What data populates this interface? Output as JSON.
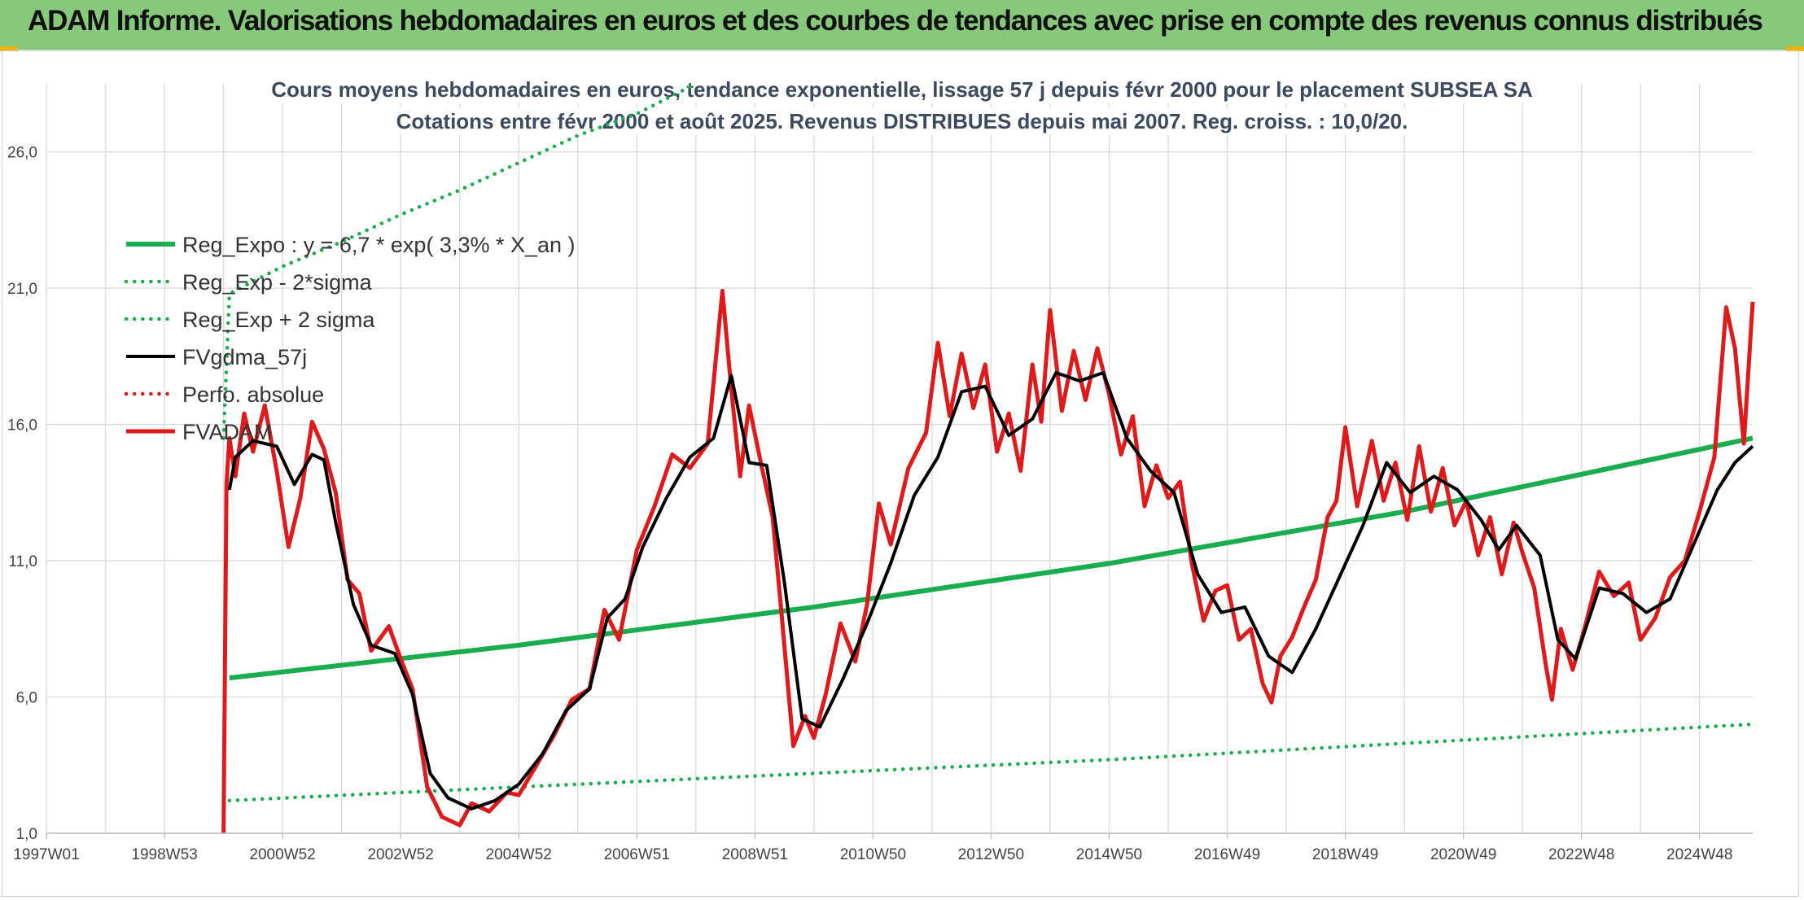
{
  "header": {
    "banner_title": "ADAM Informe. Valorisations hebdomadaires en euros et des courbes de tendances avec prise en compte des revenus connus distribués"
  },
  "colors": {
    "banner_bg": "#86c97a",
    "trend": "#1aad50",
    "band": "#1aad50",
    "smooth": "#000000",
    "price": "#e0191b",
    "perfo": "#e0191b",
    "title_text": "#3b4a5e"
  },
  "chart_data": {
    "type": "line",
    "title_lines": [
      "Cours moyens hebdomadaires en euros, tendance exponentielle, lissage 57 j depuis févr 2000 pour le placement SUBSEA SA",
      "Cotations entre févr 2000 et août 2025. Revenus DISTRIBUES depuis mai 2007. Reg. croiss. : 10,0/20."
    ],
    "xlabel": "",
    "ylabel": "",
    "x_unit": "year",
    "xlim": [
      1997.0,
      2025.9
    ],
    "ylim": [
      1.0,
      28.5
    ],
    "y_ticks": [
      1.0,
      6.0,
      11.0,
      16.0,
      21.0,
      26.0
    ],
    "y_tick_labels": [
      "1,0",
      "6,0",
      "11,0",
      "16,0",
      "21,0",
      "26,0"
    ],
    "x_ticks": [
      {
        "label": "1997W01",
        "x": 1997.0
      },
      {
        "label": "1998W53",
        "x": 1999.0
      },
      {
        "label": "2000W52",
        "x": 2001.0
      },
      {
        "label": "2002W52",
        "x": 2003.0
      },
      {
        "label": "2004W52",
        "x": 2005.0
      },
      {
        "label": "2006W51",
        "x": 2007.0
      },
      {
        "label": "2008W51",
        "x": 2009.0
      },
      {
        "label": "2010W50",
        "x": 2011.0
      },
      {
        "label": "2012W50",
        "x": 2013.0
      },
      {
        "label": "2014W50",
        "x": 2015.0
      },
      {
        "label": "2016W49",
        "x": 2017.0
      },
      {
        "label": "2018W49",
        "x": 2019.0
      },
      {
        "label": "2020W49",
        "x": 2021.0
      },
      {
        "label": "2022W48",
        "x": 2023.0
      },
      {
        "label": "2024W48",
        "x": 2025.0
      }
    ],
    "grid": true,
    "legend_position": "top-left",
    "series": [
      {
        "name": "Reg_Expo : y = 6,7 * exp( 3,3% *  X_an )",
        "style": "solid-thick",
        "color": "#1aad50",
        "points": [
          [
            2000.1,
            6.7
          ],
          [
            2005.0,
            7.9
          ],
          [
            2010.0,
            9.3
          ],
          [
            2015.0,
            10.9
          ],
          [
            2020.0,
            12.8
          ],
          [
            2025.9,
            15.5
          ]
        ]
      },
      {
        "name": "Reg_Exp - 2*sigma",
        "style": "dotted",
        "color": "#1aad50",
        "points": [
          [
            2000.1,
            2.2
          ],
          [
            2005.0,
            2.7
          ],
          [
            2010.0,
            3.2
          ],
          [
            2015.0,
            3.7
          ],
          [
            2020.0,
            4.3
          ],
          [
            2025.9,
            5.0
          ]
        ]
      },
      {
        "name": "Reg_Exp + 2 sigma",
        "style": "dotted",
        "color": "#1aad50",
        "points": [
          [
            2000.0,
            15.5
          ],
          [
            2000.1,
            20.8
          ],
          [
            2001.0,
            21.8
          ],
          [
            2002.0,
            22.7
          ],
          [
            2003.0,
            23.7
          ],
          [
            2004.0,
            24.6
          ],
          [
            2005.0,
            25.6
          ],
          [
            2006.0,
            26.6
          ],
          [
            2007.0,
            27.4
          ],
          [
            2008.0,
            28.5
          ]
        ]
      },
      {
        "name": "FVgdma_57j",
        "style": "solid",
        "color": "#000000",
        "points": [
          [
            2000.1,
            13.6
          ],
          [
            2000.2,
            14.8
          ],
          [
            2000.5,
            15.4
          ],
          [
            2000.9,
            15.2
          ],
          [
            2001.2,
            13.8
          ],
          [
            2001.5,
            14.9
          ],
          [
            2001.7,
            14.7
          ],
          [
            2001.9,
            12.4
          ],
          [
            2002.2,
            9.4
          ],
          [
            2002.5,
            7.9
          ],
          [
            2002.9,
            7.6
          ],
          [
            2003.2,
            6.1
          ],
          [
            2003.5,
            3.2
          ],
          [
            2003.8,
            2.3
          ],
          [
            2004.2,
            1.9
          ],
          [
            2004.6,
            2.2
          ],
          [
            2005.0,
            2.8
          ],
          [
            2005.4,
            3.9
          ],
          [
            2005.8,
            5.5
          ],
          [
            2006.2,
            6.3
          ],
          [
            2006.5,
            8.9
          ],
          [
            2006.8,
            9.6
          ],
          [
            2007.1,
            11.5
          ],
          [
            2007.5,
            13.3
          ],
          [
            2007.9,
            14.8
          ],
          [
            2008.3,
            15.5
          ],
          [
            2008.6,
            17.8
          ],
          [
            2008.9,
            14.6
          ],
          [
            2009.2,
            14.5
          ],
          [
            2009.5,
            10.2
          ],
          [
            2009.8,
            5.2
          ],
          [
            2010.1,
            4.9
          ],
          [
            2010.5,
            6.7
          ],
          [
            2010.9,
            8.7
          ],
          [
            2011.3,
            10.9
          ],
          [
            2011.7,
            13.4
          ],
          [
            2012.1,
            14.8
          ],
          [
            2012.5,
            17.2
          ],
          [
            2012.9,
            17.4
          ],
          [
            2013.3,
            15.6
          ],
          [
            2013.7,
            16.2
          ],
          [
            2014.1,
            17.9
          ],
          [
            2014.5,
            17.6
          ],
          [
            2014.9,
            17.9
          ],
          [
            2015.3,
            15.5
          ],
          [
            2015.7,
            14.3
          ],
          [
            2016.1,
            13.5
          ],
          [
            2016.5,
            10.5
          ],
          [
            2016.9,
            9.1
          ],
          [
            2017.3,
            9.3
          ],
          [
            2017.7,
            7.5
          ],
          [
            2018.1,
            6.9
          ],
          [
            2018.5,
            8.5
          ],
          [
            2018.9,
            10.4
          ],
          [
            2019.3,
            12.3
          ],
          [
            2019.7,
            14.6
          ],
          [
            2020.1,
            13.5
          ],
          [
            2020.5,
            14.1
          ],
          [
            2020.9,
            13.6
          ],
          [
            2021.3,
            12.5
          ],
          [
            2021.6,
            11.4
          ],
          [
            2021.9,
            12.3
          ],
          [
            2022.3,
            11.2
          ],
          [
            2022.6,
            8.1
          ],
          [
            2022.9,
            7.4
          ],
          [
            2023.3,
            10.0
          ],
          [
            2023.7,
            9.8
          ],
          [
            2024.1,
            9.1
          ],
          [
            2024.5,
            9.6
          ],
          [
            2024.9,
            11.6
          ],
          [
            2025.3,
            13.6
          ],
          [
            2025.6,
            14.6
          ],
          [
            2025.9,
            15.2
          ]
        ]
      },
      {
        "name": "Perfo. absolue",
        "style": "dotted",
        "color": "#e0191b",
        "points": []
      },
      {
        "name": "FVADAM",
        "style": "solid-thick",
        "color": "#e0191b",
        "points": [
          [
            2000.0,
            1.0
          ],
          [
            2000.05,
            13.8
          ],
          [
            2000.1,
            15.5
          ],
          [
            2000.2,
            14.1
          ],
          [
            2000.35,
            16.4
          ],
          [
            2000.5,
            15.0
          ],
          [
            2000.7,
            16.7
          ],
          [
            2000.9,
            14.3
          ],
          [
            2001.1,
            11.5
          ],
          [
            2001.3,
            13.3
          ],
          [
            2001.5,
            16.1
          ],
          [
            2001.7,
            15.1
          ],
          [
            2001.9,
            13.5
          ],
          [
            2002.1,
            10.3
          ],
          [
            2002.3,
            9.8
          ],
          [
            2002.5,
            7.7
          ],
          [
            2002.8,
            8.6
          ],
          [
            2003.0,
            7.4
          ],
          [
            2003.2,
            6.3
          ],
          [
            2003.45,
            2.7
          ],
          [
            2003.7,
            1.6
          ],
          [
            2004.0,
            1.3
          ],
          [
            2004.2,
            2.1
          ],
          [
            2004.5,
            1.8
          ],
          [
            2004.8,
            2.5
          ],
          [
            2005.0,
            2.4
          ],
          [
            2005.3,
            3.5
          ],
          [
            2005.6,
            4.6
          ],
          [
            2005.9,
            5.9
          ],
          [
            2006.2,
            6.3
          ],
          [
            2006.45,
            9.2
          ],
          [
            2006.7,
            8.1
          ],
          [
            2007.0,
            11.4
          ],
          [
            2007.3,
            13.0
          ],
          [
            2007.6,
            14.9
          ],
          [
            2007.9,
            14.4
          ],
          [
            2008.2,
            15.3
          ],
          [
            2008.45,
            20.9
          ],
          [
            2008.6,
            17.3
          ],
          [
            2008.75,
            14.1
          ],
          [
            2008.9,
            16.7
          ],
          [
            2009.1,
            14.6
          ],
          [
            2009.3,
            12.6
          ],
          [
            2009.45,
            9.1
          ],
          [
            2009.65,
            4.2
          ],
          [
            2009.85,
            5.3
          ],
          [
            2010.0,
            4.5
          ],
          [
            2010.2,
            6.1
          ],
          [
            2010.45,
            8.7
          ],
          [
            2010.7,
            7.3
          ],
          [
            2010.9,
            9.4
          ],
          [
            2011.1,
            13.1
          ],
          [
            2011.3,
            11.6
          ],
          [
            2011.6,
            14.4
          ],
          [
            2011.9,
            15.7
          ],
          [
            2012.1,
            19.0
          ],
          [
            2012.3,
            16.3
          ],
          [
            2012.5,
            18.6
          ],
          [
            2012.7,
            16.6
          ],
          [
            2012.9,
            18.2
          ],
          [
            2013.1,
            15.0
          ],
          [
            2013.3,
            16.4
          ],
          [
            2013.5,
            14.3
          ],
          [
            2013.7,
            18.2
          ],
          [
            2013.85,
            16.1
          ],
          [
            2014.0,
            20.2
          ],
          [
            2014.2,
            16.5
          ],
          [
            2014.4,
            18.7
          ],
          [
            2014.6,
            16.9
          ],
          [
            2014.8,
            18.8
          ],
          [
            2015.0,
            17.1
          ],
          [
            2015.2,
            14.9
          ],
          [
            2015.4,
            16.3
          ],
          [
            2015.6,
            13.0
          ],
          [
            2015.8,
            14.5
          ],
          [
            2016.0,
            13.3
          ],
          [
            2016.2,
            13.9
          ],
          [
            2016.4,
            10.9
          ],
          [
            2016.6,
            8.8
          ],
          [
            2016.8,
            9.9
          ],
          [
            2017.0,
            10.1
          ],
          [
            2017.2,
            8.1
          ],
          [
            2017.4,
            8.5
          ],
          [
            2017.6,
            6.5
          ],
          [
            2017.75,
            5.8
          ],
          [
            2017.9,
            7.5
          ],
          [
            2018.1,
            8.2
          ],
          [
            2018.3,
            9.3
          ],
          [
            2018.5,
            10.3
          ],
          [
            2018.7,
            12.6
          ],
          [
            2018.85,
            13.2
          ],
          [
            2019.0,
            15.9
          ],
          [
            2019.2,
            13.0
          ],
          [
            2019.45,
            15.4
          ],
          [
            2019.65,
            13.2
          ],
          [
            2019.85,
            14.6
          ],
          [
            2020.05,
            12.5
          ],
          [
            2020.25,
            15.2
          ],
          [
            2020.45,
            12.8
          ],
          [
            2020.65,
            14.4
          ],
          [
            2020.85,
            12.3
          ],
          [
            2021.05,
            13.2
          ],
          [
            2021.25,
            11.2
          ],
          [
            2021.45,
            12.6
          ],
          [
            2021.65,
            10.5
          ],
          [
            2021.85,
            12.4
          ],
          [
            2022.0,
            11.3
          ],
          [
            2022.2,
            10.0
          ],
          [
            2022.4,
            7.1
          ],
          [
            2022.5,
            5.9
          ],
          [
            2022.65,
            8.5
          ],
          [
            2022.85,
            7.0
          ],
          [
            2023.05,
            8.5
          ],
          [
            2023.3,
            10.6
          ],
          [
            2023.55,
            9.7
          ],
          [
            2023.8,
            10.2
          ],
          [
            2024.0,
            8.1
          ],
          [
            2024.25,
            8.9
          ],
          [
            2024.5,
            10.4
          ],
          [
            2024.75,
            11.0
          ],
          [
            2025.0,
            12.8
          ],
          [
            2025.25,
            14.8
          ],
          [
            2025.45,
            20.3
          ],
          [
            2025.6,
            18.8
          ],
          [
            2025.75,
            15.3
          ],
          [
            2025.9,
            20.5
          ]
        ]
      }
    ]
  }
}
